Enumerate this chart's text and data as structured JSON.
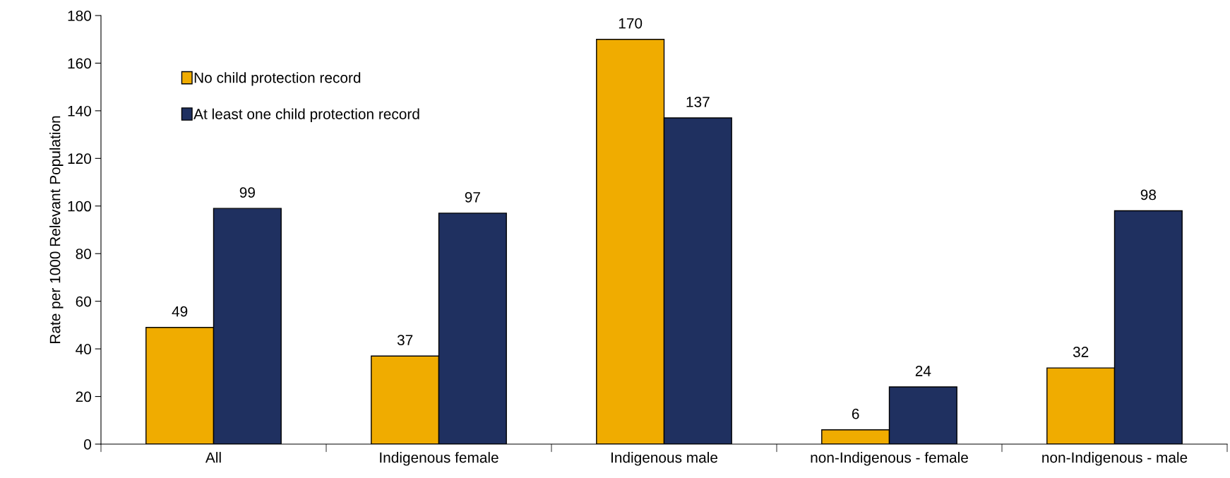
{
  "chart_data": {
    "type": "bar",
    "ylabel": "Rate per 1000 Relevant Population",
    "categories": [
      "All",
      "Indigenous female",
      "Indigenous male",
      "non-Indigenous - female",
      "non-Indigenous - male"
    ],
    "series": [
      {
        "name": "No child protection record",
        "color": "#f0ac00",
        "values": [
          49,
          37,
          170,
          6,
          32
        ]
      },
      {
        "name": "At least one child protection record",
        "color": "#1f3060",
        "values": [
          99,
          97,
          137,
          24,
          98
        ]
      }
    ],
    "ylim": [
      0,
      180
    ],
    "yticks": [
      0,
      20,
      40,
      60,
      80,
      100,
      120,
      140,
      160,
      180
    ],
    "grid": false,
    "legend": "top left",
    "data_labels": true
  }
}
